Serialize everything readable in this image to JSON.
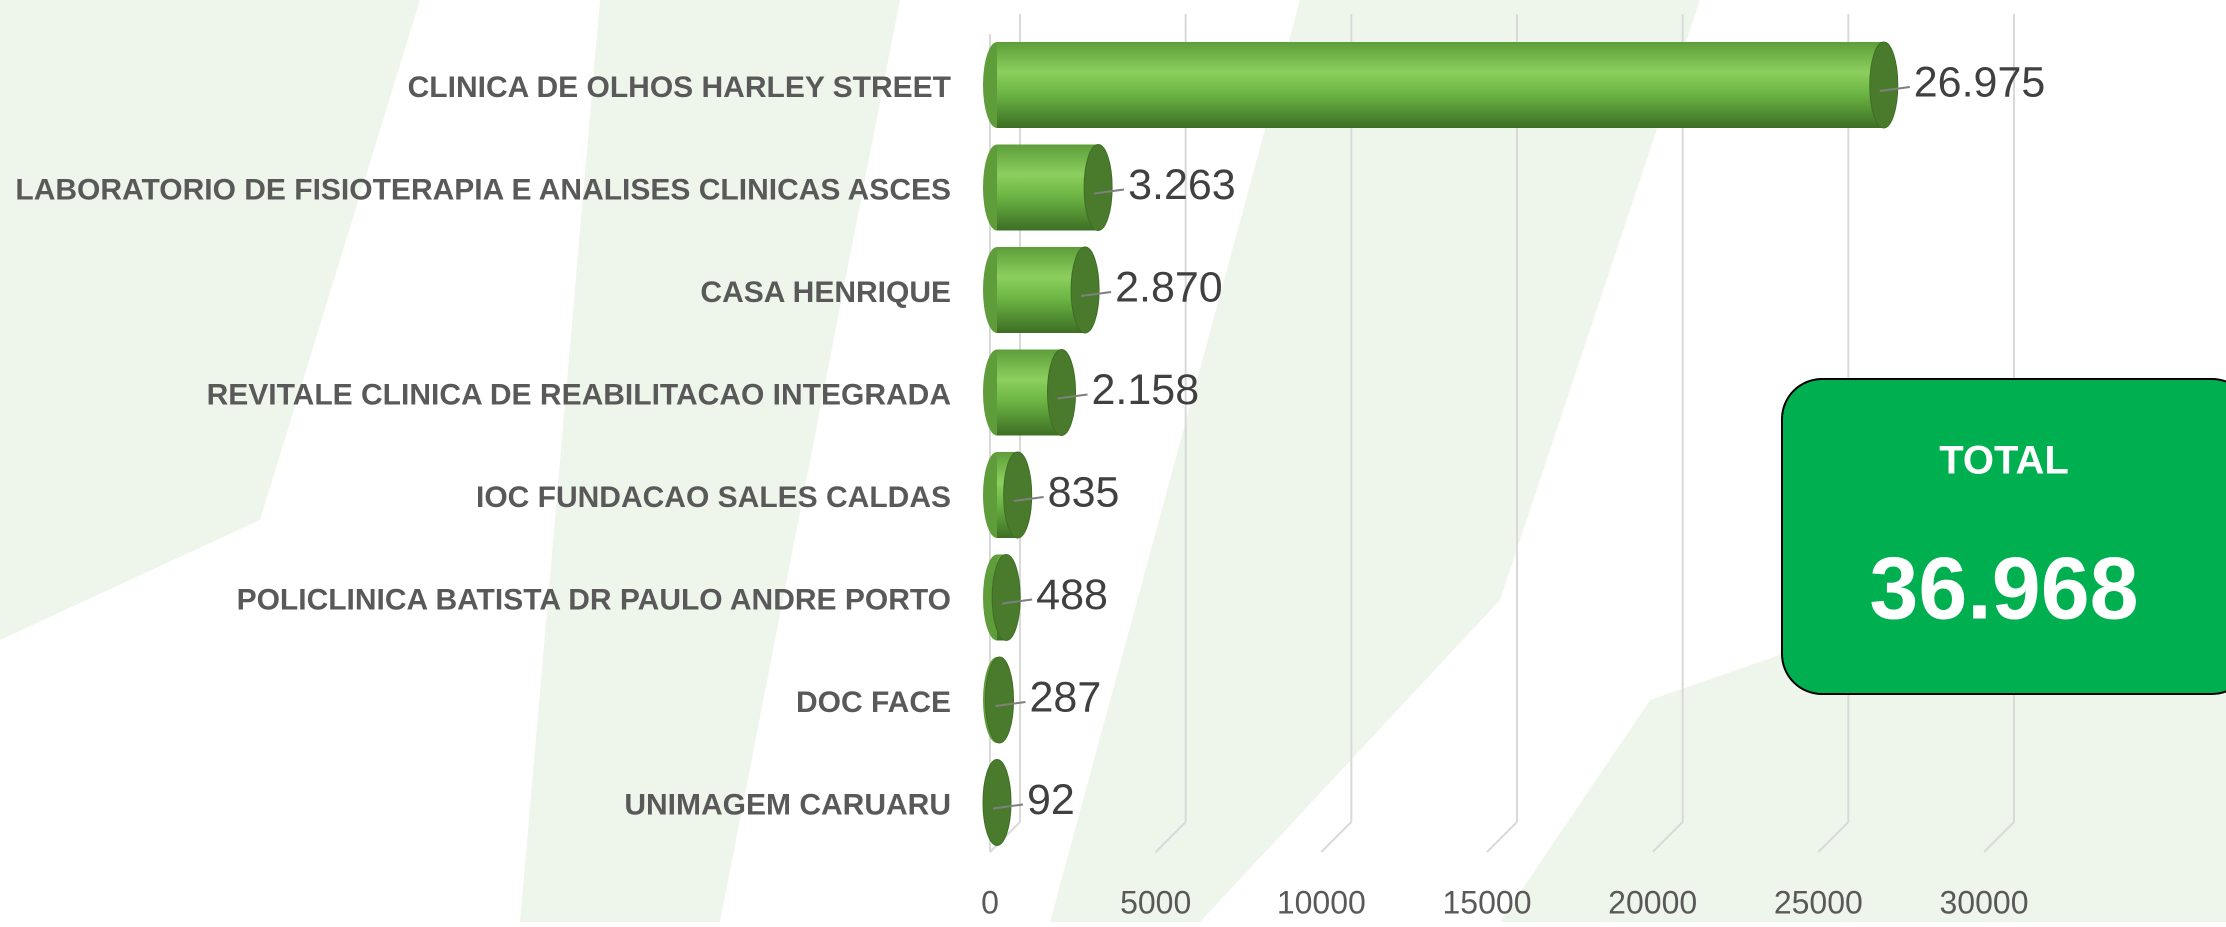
{
  "chart_data": {
    "type": "bar",
    "orientation": "horizontal",
    "categories": [
      "CLINICA DE OLHOS HARLEY STREET",
      "LABORATORIO DE FISIOTERAPIA E ANALISES CLINICAS ASCES",
      "CASA HENRIQUE",
      "REVITALE CLINICA DE REABILITACAO INTEGRADA",
      "IOC FUNDACAO SALES CALDAS",
      "POLICLINICA BATISTA DR PAULO ANDRE PORTO",
      "DOC FACE",
      "UNIMAGEM CARUARU"
    ],
    "values": [
      26975,
      3263,
      2870,
      2158,
      835,
      488,
      287,
      92
    ],
    "value_labels": [
      "26.975",
      "3.263",
      "2.870",
      "2.158",
      "835",
      "488",
      "287",
      "92"
    ],
    "color": "#6ab04c",
    "xlim": [
      0,
      30000
    ],
    "xticks": [
      0,
      5000,
      10000,
      15000,
      20000,
      25000,
      30000
    ],
    "grid": true,
    "total_title": "TOTAL",
    "total": "36.968"
  }
}
